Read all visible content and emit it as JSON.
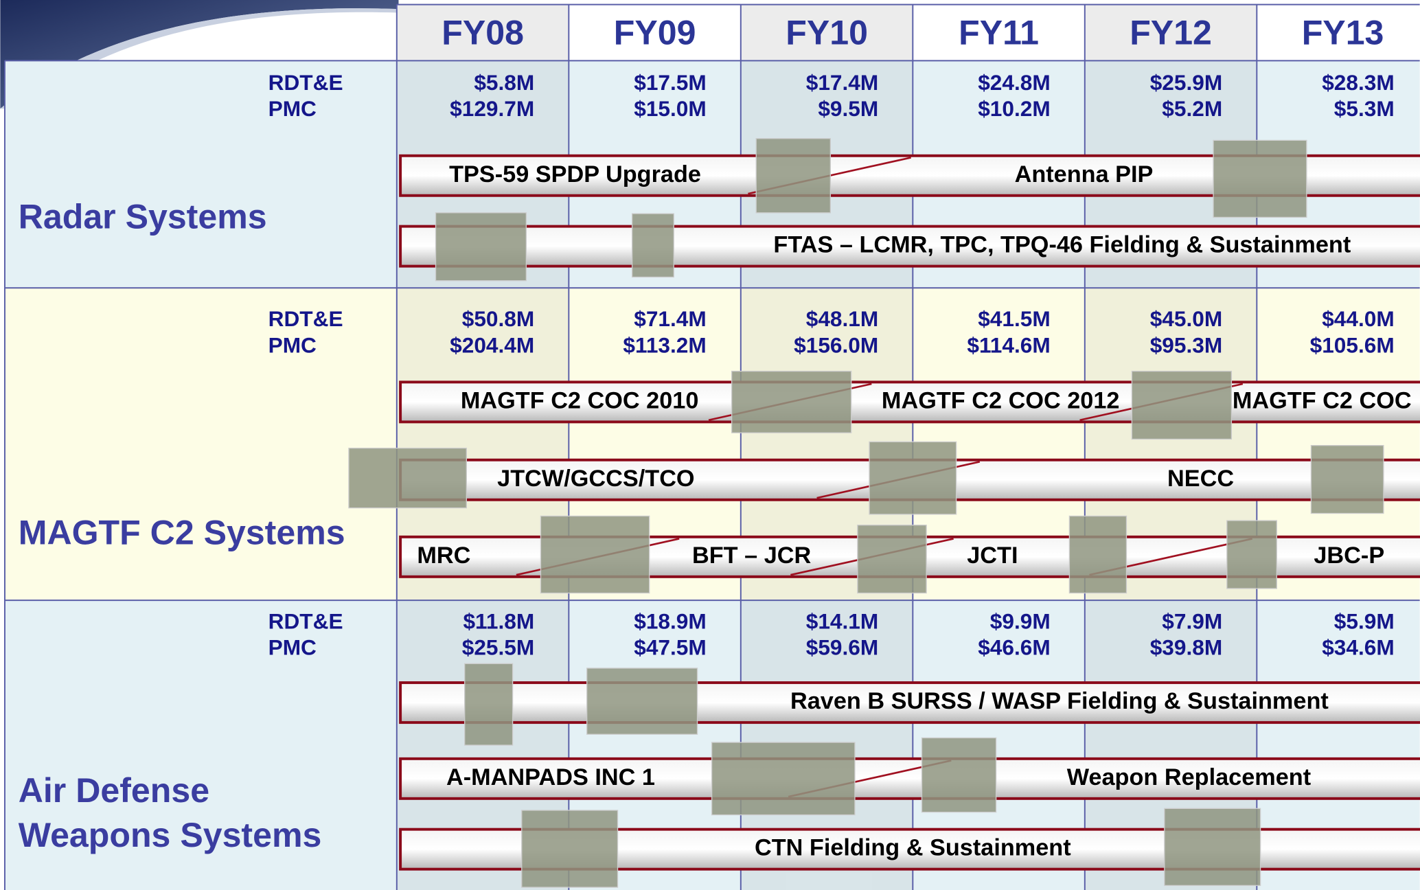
{
  "columns": [
    "FY08",
    "FY09",
    "FY10",
    "FY11",
    "FY12",
    "FY13"
  ],
  "sections": [
    {
      "title": [
        "Radar Systems"
      ],
      "funding": [
        {
          "label": "RDT&E",
          "values": [
            "$5.8M",
            "$17.5M",
            "$17.4M",
            "$24.8M",
            "$25.9M",
            "$28.3M"
          ]
        },
        {
          "label": "PMC",
          "values": [
            "$129.7M",
            "$15.0M",
            "$9.5M",
            "$10.2M",
            "$5.2M",
            "$5.3M"
          ]
        }
      ],
      "bars": [
        {
          "labels": [
            "TPS-59 SPDP Upgrade",
            "Antenna PIP"
          ]
        },
        {
          "labels": [
            "FTAS – LCMR, TPC, TPQ-46 Fielding & Sustainment"
          ]
        }
      ]
    },
    {
      "title": [
        "MAGTF C2 Systems"
      ],
      "funding": [
        {
          "label": "RDT&E",
          "values": [
            "$50.8M",
            "$71.4M",
            "$48.1M",
            "$41.5M",
            "$45.0M",
            "$44.0M"
          ]
        },
        {
          "label": "PMC",
          "values": [
            "$204.4M",
            "$113.2M",
            "$156.0M",
            "$114.6M",
            "$95.3M",
            "$105.6M"
          ]
        }
      ],
      "bars": [
        {
          "labels": [
            "MAGTF C2 COC 2010",
            "MAGTF C2 COC 2012",
            "MAGTF C2 COC"
          ]
        },
        {
          "labels": [
            "JTCW/GCCS/TCO",
            "NECC"
          ]
        },
        {
          "labels": [
            "MRC",
            "BFT – JCR",
            "JCTI",
            "JBC-P"
          ]
        }
      ]
    },
    {
      "title": [
        "Air Defense",
        "Weapons Systems"
      ],
      "funding": [
        {
          "label": "RDT&E",
          "values": [
            "$11.8M",
            "$18.9M",
            "$14.1M",
            "$9.9M",
            "$7.9M",
            "$5.9M"
          ]
        },
        {
          "label": "PMC",
          "values": [
            "$25.5M",
            "$47.5M",
            "$59.6M",
            "$46.6M",
            "$39.8M",
            "$34.6M"
          ]
        }
      ],
      "bars": [
        {
          "labels": [
            "Raven B SURSS / WASP Fielding & Sustainment"
          ]
        },
        {
          "labels": [
            "A-MANPADS INC 1",
            "Weapon Replacement"
          ]
        },
        {
          "labels": [
            "CTN Fielding & Sustainment"
          ]
        }
      ]
    }
  ]
}
